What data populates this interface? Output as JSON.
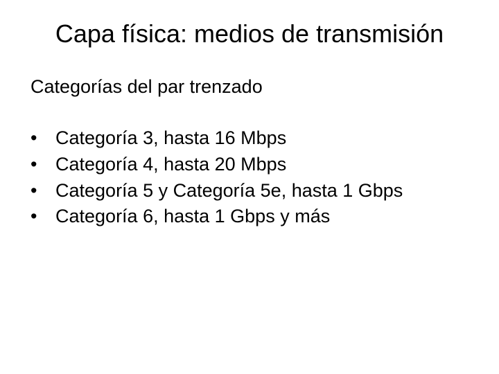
{
  "slide": {
    "title": "Capa física: medios de transmisión",
    "subtitle": "Categorías del par trenzado",
    "bullets": [
      "Categoría 3, hasta 16 Mbps",
      "Categoría 4, hasta 20 Mbps",
      "Categoría 5 y Categoría 5e, hasta 1 Gbps",
      "Categoría 6, hasta 1 Gbps y más"
    ],
    "bullet_marker": "•"
  },
  "style": {
    "background_color": "#ffffff",
    "text_color": "#000000",
    "title_fontsize": 36,
    "subtitle_fontsize": 27,
    "body_fontsize": 27,
    "font_family": "Arial"
  }
}
